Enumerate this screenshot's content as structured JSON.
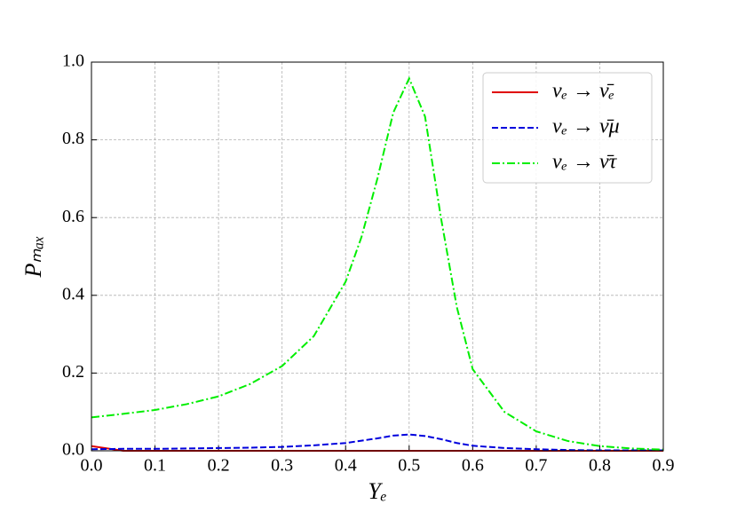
{
  "chart_data": {
    "type": "line",
    "xlabel": "Yₑ",
    "ylabel": "Pₘₐₓ",
    "x": [
      0,
      0.05,
      0.1,
      0.15,
      0.2,
      0.25,
      0.3,
      0.35,
      0.4,
      0.425,
      0.45,
      0.475,
      0.5,
      0.525,
      0.55,
      0.575,
      0.6,
      0.65,
      0.7,
      0.75,
      0.8,
      0.85,
      0.9
    ],
    "series": [
      {
        "name": "νₑ → ν̄ₑ",
        "color": "#e00000",
        "style": "solid",
        "values": [
          0.012,
          0,
          0,
          0,
          0,
          0,
          0,
          0,
          0,
          0,
          0,
          0,
          0,
          0,
          0,
          0,
          0,
          0,
          0,
          0,
          0,
          0,
          0
        ]
      },
      {
        "name": "νₑ → ν̄μ",
        "color": "#0000dd",
        "style": "dashed",
        "values": [
          0.004,
          0.005,
          0.005,
          0.006,
          0.007,
          0.008,
          0.01,
          0.014,
          0.02,
          0.026,
          0.032,
          0.039,
          0.042,
          0.038,
          0.03,
          0.02,
          0.013,
          0.007,
          0.004,
          0.002,
          0.001,
          0.001,
          0.001
        ]
      },
      {
        "name": "νₑ → ν̄τ",
        "color": "#00ee00",
        "style": "dashdot",
        "values": [
          0.086,
          0.095,
          0.105,
          0.12,
          0.14,
          0.172,
          0.218,
          0.295,
          0.435,
          0.55,
          0.7,
          0.87,
          0.958,
          0.86,
          0.6,
          0.37,
          0.21,
          0.1,
          0.05,
          0.025,
          0.012,
          0.006,
          0.003
        ]
      }
    ],
    "xlim": [
      0,
      0.9
    ],
    "ylim": [
      0,
      1
    ],
    "xticks": [
      {
        "value": 0,
        "label": "0.0"
      },
      0.1,
      0.2,
      0.3,
      0.4,
      0.5,
      0.6,
      0.7,
      0.8,
      0.9
    ],
    "yticks": [
      {
        "value": 0,
        "label": "0.0"
      },
      0.2,
      0.4,
      0.6,
      0.8,
      {
        "value": 1,
        "label": "1.0"
      }
    ],
    "grid": true,
    "legend": "upper right"
  }
}
